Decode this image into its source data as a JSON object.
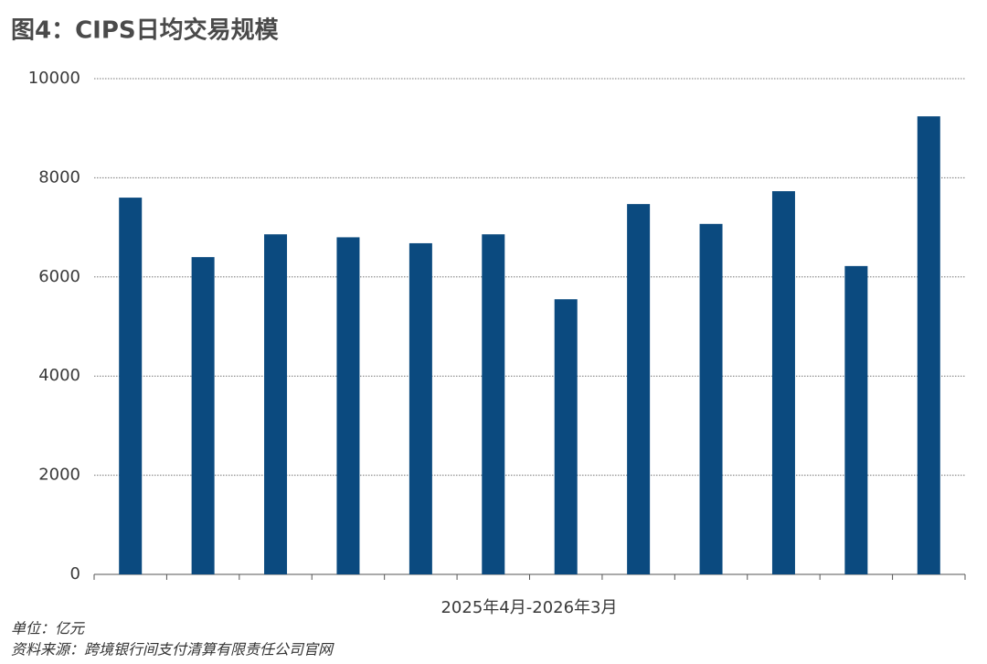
{
  "chart_data": {
    "type": "bar",
    "title": "图4：CIPS日均交易规模",
    "x_label": "2025年4月-2026年3月",
    "unit_note": "单位：亿元",
    "source": "资料来源：跨境银行间支付清算有限责任公司官网",
    "categories": [
      null,
      null,
      null,
      null,
      null,
      null,
      null,
      null,
      null,
      null,
      null,
      null
    ],
    "values": [
      7600,
      6400,
      6860,
      6800,
      6680,
      6860,
      5550,
      7470,
      7070,
      7730,
      6220,
      9240
    ],
    "color": "#0b4a7f",
    "ylim": [
      0,
      10000
    ],
    "yticks": [
      0,
      2000,
      4000,
      6000,
      8000,
      10000
    ],
    "grid": true
  }
}
